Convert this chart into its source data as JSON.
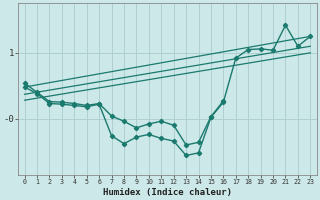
{
  "xlabel": "Humidex (Indice chaleur)",
  "background_color": "#cde8e8",
  "line_color": "#1a7a6e",
  "grid_color": "#aed0d0",
  "line1_x": [
    0,
    1,
    2,
    3,
    4,
    5,
    6,
    7,
    8,
    9,
    10,
    11,
    12,
    13,
    14,
    15,
    16,
    17,
    18,
    19,
    20,
    21,
    22,
    23
  ],
  "line1_y": [
    0.48,
    0.38,
    0.23,
    0.22,
    0.2,
    0.18,
    0.22,
    -0.26,
    -0.38,
    -0.28,
    -0.24,
    -0.3,
    -0.34,
    -0.56,
    -0.52,
    0.02,
    0.25,
    0.92,
    1.05,
    1.06,
    1.04,
    1.42,
    1.1,
    1.25
  ],
  "line2_x": [
    0,
    1,
    2,
    3,
    4,
    5,
    6,
    7,
    8,
    9,
    10,
    11,
    12,
    13,
    14,
    15,
    16
  ],
  "line2_y": [
    0.54,
    0.4,
    0.26,
    0.25,
    0.23,
    0.2,
    0.23,
    0.04,
    -0.04,
    -0.14,
    -0.08,
    -0.04,
    -0.1,
    -0.4,
    -0.36,
    0.03,
    0.27
  ],
  "trend1_x": [
    0,
    23
  ],
  "trend1_y": [
    0.48,
    1.25
  ],
  "trend2_x": [
    0,
    23
  ],
  "trend2_y": [
    0.37,
    1.1
  ],
  "trend3_x": [
    0,
    23
  ],
  "trend3_y": [
    0.28,
    1.0
  ],
  "ylim": [
    -0.85,
    1.75
  ],
  "xlim": [
    -0.5,
    23.5
  ],
  "ytick_positions": [
    1.0,
    0.0
  ],
  "ytick_labels": [
    "1",
    "-0"
  ],
  "xticks": [
    0,
    1,
    2,
    3,
    4,
    5,
    6,
    7,
    8,
    9,
    10,
    11,
    12,
    13,
    14,
    15,
    16,
    17,
    18,
    19,
    20,
    21,
    22,
    23
  ]
}
